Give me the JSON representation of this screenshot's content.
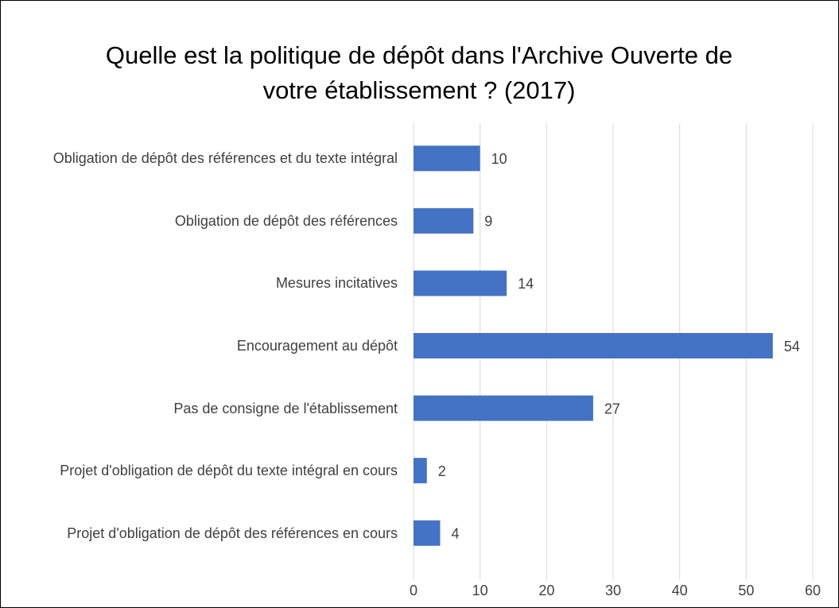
{
  "chart_data": {
    "type": "barh",
    "title": "Quelle est la politique de dépôt dans l'Archive Ouverte de votre établissement ? (2017)",
    "categories": [
      "Obligation de dépôt des références et du texte intégral",
      "Obligation de dépôt des références",
      "Mesures incitatives",
      "Encouragement au dépôt",
      "Pas de consigne de l'établissement",
      "Projet d'obligation de dépôt du texte intégral en cours",
      "Projet d'obligation de dépôt des références en cours"
    ],
    "values": [
      10,
      9,
      14,
      54,
      27,
      2,
      4
    ],
    "color": "#4472c4",
    "xlim": [
      0,
      60
    ],
    "xticks": [
      0,
      10,
      20,
      30,
      40,
      50,
      60
    ],
    "grid": true
  }
}
